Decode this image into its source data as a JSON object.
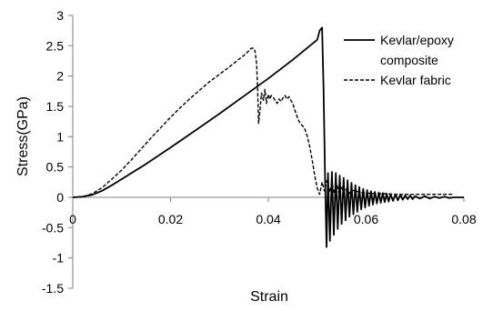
{
  "chart_data": {
    "type": "line",
    "title": "",
    "xlabel": "Strain",
    "ylabel": "Stress(GPa)",
    "xlim": [
      0,
      0.08
    ],
    "ylim": [
      -1.5,
      3
    ],
    "grid": false,
    "legend_position": "top-right",
    "x_ticks": [
      0,
      0.02,
      0.04,
      0.06,
      0.08
    ],
    "x_tick_labels": [
      "0",
      "0.02",
      "0.04",
      "0.06",
      "0.08"
    ],
    "y_ticks": [
      -1.5,
      -1,
      -0.5,
      0,
      0.5,
      1,
      1.5,
      2,
      2.5,
      3
    ],
    "y_tick_labels": [
      "-1.5",
      "-1",
      "-0.5",
      "0",
      "0.5",
      "1",
      "1.5",
      "2",
      "2.5",
      "3"
    ],
    "legend": [
      {
        "lines": [
          "Kevlar/epoxy",
          "composite"
        ],
        "style": "solid"
      },
      {
        "lines": [
          "Kevlar fabric"
        ],
        "style": "dashed"
      }
    ],
    "series": [
      {
        "name": "Kevlar/epoxy composite",
        "style": "solid",
        "color": "#000000",
        "x": [
          0,
          0.002,
          0.004,
          0.006,
          0.008,
          0.01,
          0.015,
          0.02,
          0.025,
          0.03,
          0.035,
          0.04,
          0.045,
          0.05,
          0.0505,
          0.051,
          0.0513,
          0.0516,
          0.0519,
          0.0522,
          0.0526,
          0.053,
          0.0534,
          0.0538,
          0.0542,
          0.0546,
          0.055,
          0.0554,
          0.0558,
          0.0562,
          0.0566,
          0.057,
          0.0574,
          0.0578,
          0.0582,
          0.0586,
          0.059,
          0.0594,
          0.0598,
          0.0602,
          0.0606,
          0.061,
          0.0614,
          0.0618,
          0.0622,
          0.0626,
          0.063,
          0.0634,
          0.0638,
          0.0642,
          0.0646,
          0.065,
          0.0655,
          0.066,
          0.0665,
          0.067,
          0.0675,
          0.068,
          0.0685,
          0.069,
          0.0695,
          0.07,
          0.071,
          0.072,
          0.073,
          0.074,
          0.075,
          0.076,
          0.077,
          0.078,
          0.08
        ],
        "y": [
          0,
          0.01,
          0.04,
          0.11,
          0.2,
          0.3,
          0.55,
          0.82,
          1.1,
          1.38,
          1.67,
          1.96,
          2.27,
          2.6,
          2.75,
          2.8,
          1.8,
          0.3,
          -0.82,
          0.4,
          -0.72,
          0.42,
          -0.62,
          0.4,
          -0.52,
          0.36,
          -0.44,
          0.32,
          -0.38,
          0.28,
          -0.32,
          0.24,
          -0.28,
          0.2,
          -0.24,
          0.17,
          -0.2,
          0.14,
          -0.17,
          0.12,
          -0.14,
          0.1,
          -0.12,
          0.09,
          -0.1,
          0.08,
          -0.09,
          0.07,
          -0.08,
          0.06,
          -0.07,
          0.05,
          -0.06,
          0.05,
          -0.05,
          0.04,
          -0.04,
          0.03,
          -0.03,
          0.03,
          -0.03,
          0.02,
          -0.02,
          0.02,
          -0.02,
          0.01,
          -0.01,
          0.01,
          -0.01,
          0,
          0
        ]
      },
      {
        "name": "Kevlar fabric",
        "style": "dashed",
        "color": "#000000",
        "x": [
          0,
          0.002,
          0.004,
          0.006,
          0.008,
          0.01,
          0.012,
          0.014,
          0.016,
          0.018,
          0.02,
          0.022,
          0.024,
          0.026,
          0.028,
          0.03,
          0.032,
          0.034,
          0.035,
          0.0358,
          0.0362,
          0.0366,
          0.037,
          0.0373,
          0.0376,
          0.0378,
          0.038,
          0.0383,
          0.0386,
          0.039,
          0.0393,
          0.0396,
          0.04,
          0.0403,
          0.0406,
          0.041,
          0.0414,
          0.0418,
          0.0422,
          0.0426,
          0.043,
          0.0434,
          0.0438,
          0.0442,
          0.0446,
          0.045,
          0.0455,
          0.046,
          0.0465,
          0.047,
          0.0475,
          0.048,
          0.0485,
          0.049,
          0.0495,
          0.05,
          0.0505,
          0.051,
          0.0515,
          0.052,
          0.0525,
          0.053,
          0.0535,
          0.054,
          0.0545,
          0.055,
          0.0555,
          0.056,
          0.0565,
          0.057,
          0.058,
          0.059,
          0.06,
          0.062,
          0.064,
          0.066,
          0.068,
          0.07,
          0.072,
          0.074,
          0.076,
          0.078
        ],
        "y": [
          0,
          0.01,
          0.06,
          0.16,
          0.3,
          0.45,
          0.62,
          0.8,
          0.98,
          1.15,
          1.32,
          1.48,
          1.63,
          1.77,
          1.91,
          2.03,
          2.15,
          2.28,
          2.34,
          2.4,
          2.44,
          2.46,
          2.46,
          2.4,
          2.2,
          1.8,
          1.22,
          1.45,
          1.72,
          1.6,
          1.78,
          1.55,
          1.7,
          1.62,
          1.68,
          1.65,
          1.6,
          1.55,
          1.62,
          1.58,
          1.64,
          1.68,
          1.62,
          1.66,
          1.6,
          1.55,
          1.42,
          1.3,
          1.22,
          1.18,
          1.12,
          1.0,
          0.82,
          0.6,
          0.35,
          0.15,
          0.05,
          0.25,
          0.1,
          0.28,
          0.08,
          0.25,
          0.06,
          0.22,
          0.06,
          0.18,
          0.06,
          0.14,
          0.06,
          0.12,
          0.1,
          0.08,
          0.07,
          0.06,
          0.06,
          0.05,
          0.05,
          0.05,
          0.05,
          0.05,
          0.05,
          0.05
        ]
      }
    ]
  }
}
